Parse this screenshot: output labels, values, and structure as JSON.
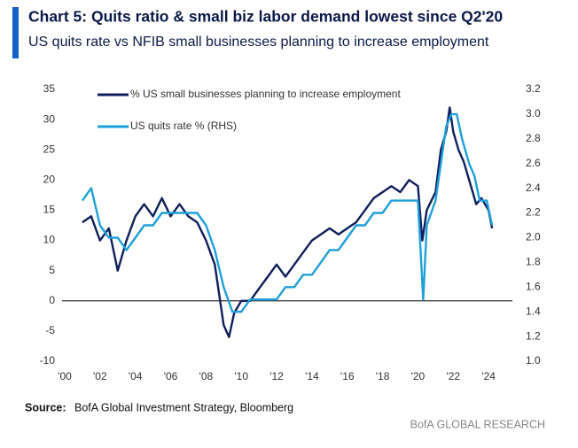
{
  "chart_data": {
    "type": "line",
    "title": "Chart 5: Quits ratio & small biz labor demand lowest since Q2'20",
    "subtitle": "US quits rate vs NFIB small businesses planning to increase employment",
    "source_label": "Source:",
    "source": "BofA Global Investment Strategy, Bloomberg",
    "footer": "BofA GLOBAL RESEARCH",
    "xlim": [
      1999.85,
      2025.35
    ],
    "xticks": [
      {
        "value": 2000,
        "label": "'00"
      },
      {
        "value": 2002,
        "label": "'02"
      },
      {
        "value": 2004,
        "label": "'04"
      },
      {
        "value": 2006,
        "label": "'06"
      },
      {
        "value": 2008,
        "label": "'08"
      },
      {
        "value": 2010,
        "label": "'10"
      },
      {
        "value": 2012,
        "label": "'12"
      },
      {
        "value": 2014,
        "label": "'14"
      },
      {
        "value": 2016,
        "label": "'16"
      },
      {
        "value": 2018,
        "label": "'18"
      },
      {
        "value": 2020,
        "label": "'20"
      },
      {
        "value": 2022,
        "label": "'22"
      },
      {
        "value": 2024,
        "label": "'24"
      }
    ],
    "ylim": [
      -10,
      35
    ],
    "yticks": [
      -10,
      -5,
      0,
      5,
      10,
      15,
      20,
      25,
      30,
      35
    ],
    "y2lim": [
      1.0,
      3.2
    ],
    "y2ticks": [
      {
        "value": 1.0,
        "label": "1.0"
      },
      1.2,
      1.4,
      1.6,
      1.8,
      {
        "value": 2.0,
        "label": "2.0"
      },
      2.2,
      2.4,
      2.6,
      2.8,
      {
        "value": 3.0,
        "label": "3.0"
      },
      3.2
    ],
    "series": [
      {
        "name": "% US small businesses planning to increase employment",
        "color": "#0f1f5c",
        "x": [
          2001,
          2001.5,
          2002,
          2002.5,
          2003,
          2003.5,
          2004,
          2004.5,
          2005,
          2005.5,
          2006,
          2006.5,
          2007,
          2007.5,
          2008,
          2008.5,
          2009,
          2009.3,
          2009.6,
          2010,
          2010.5,
          2011,
          2011.5,
          2012,
          2012.5,
          2013,
          2013.5,
          2014,
          2014.5,
          2015,
          2015.5,
          2016,
          2016.5,
          2017,
          2017.5,
          2018,
          2018.5,
          2019,
          2019.5,
          2020,
          2020.25,
          2020.5,
          2021,
          2021.3,
          2021.6,
          2021.8,
          2022,
          2022.3,
          2022.6,
          2023,
          2023.3,
          2023.6,
          2024,
          2024.2
        ],
        "values": [
          13,
          14,
          10,
          12,
          5,
          10,
          14,
          16,
          14,
          17,
          14,
          16,
          14,
          13,
          10,
          6,
          -4,
          -6,
          -2,
          0,
          0,
          2,
          4,
          6,
          4,
          6,
          8,
          10,
          11,
          12,
          11,
          12,
          13,
          15,
          17,
          18,
          19,
          18,
          20,
          19,
          10,
          15,
          18,
          25,
          28,
          32,
          28,
          25,
          23,
          19,
          16,
          17,
          15,
          12
        ]
      },
      {
        "name": "US quits rate % (RHS)",
        "color": "#1ea0dc",
        "axis": "y2",
        "x": [
          2001,
          2001.5,
          2002,
          2002.5,
          2003,
          2003.5,
          2004,
          2004.5,
          2005,
          2005.5,
          2006,
          2006.5,
          2007,
          2007.5,
          2008,
          2008.5,
          2009,
          2009.5,
          2010,
          2010.5,
          2011,
          2011.5,
          2012,
          2012.5,
          2013,
          2013.5,
          2014,
          2014.5,
          2015,
          2015.5,
          2016,
          2016.5,
          2017,
          2017.5,
          2018,
          2018.5,
          2019,
          2019.5,
          2020,
          2020.3,
          2020.5,
          2021,
          2021.3,
          2021.6,
          2021.9,
          2022.2,
          2022.5,
          2022.9,
          2023.2,
          2023.5,
          2023.9,
          2024.2
        ],
        "values": [
          2.3,
          2.4,
          2.1,
          2.0,
          2.0,
          1.9,
          2.0,
          2.1,
          2.1,
          2.2,
          2.2,
          2.2,
          2.2,
          2.2,
          2.1,
          1.9,
          1.6,
          1.4,
          1.4,
          1.5,
          1.5,
          1.5,
          1.5,
          1.6,
          1.6,
          1.7,
          1.7,
          1.8,
          1.9,
          1.9,
          2.0,
          2.1,
          2.1,
          2.2,
          2.2,
          2.3,
          2.3,
          2.3,
          2.3,
          1.5,
          2.1,
          2.3,
          2.6,
          2.9,
          3.0,
          3.0,
          2.8,
          2.6,
          2.5,
          2.3,
          2.3,
          2.1
        ]
      }
    ]
  }
}
